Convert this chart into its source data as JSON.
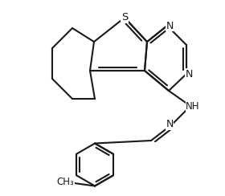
{
  "background_color": "#ffffff",
  "line_color": "#1a1a1a",
  "line_width": 1.5,
  "figsize": [
    2.8,
    2.44
  ],
  "dpi": 100,
  "xlim": [
    0.0,
    2.8
  ],
  "ylim": [
    0.0,
    2.44
  ]
}
